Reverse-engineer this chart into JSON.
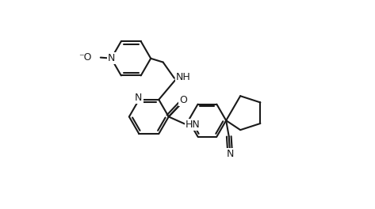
{
  "background_color": "#ffffff",
  "line_color": "#1a1a1a",
  "line_width": 1.5,
  "font_size": 9,
  "fig_width": 4.73,
  "fig_height": 2.64,
  "dpi": 100,
  "xlim": [
    -0.05,
    1.05
  ],
  "ylim": [
    -0.05,
    1.05
  ]
}
